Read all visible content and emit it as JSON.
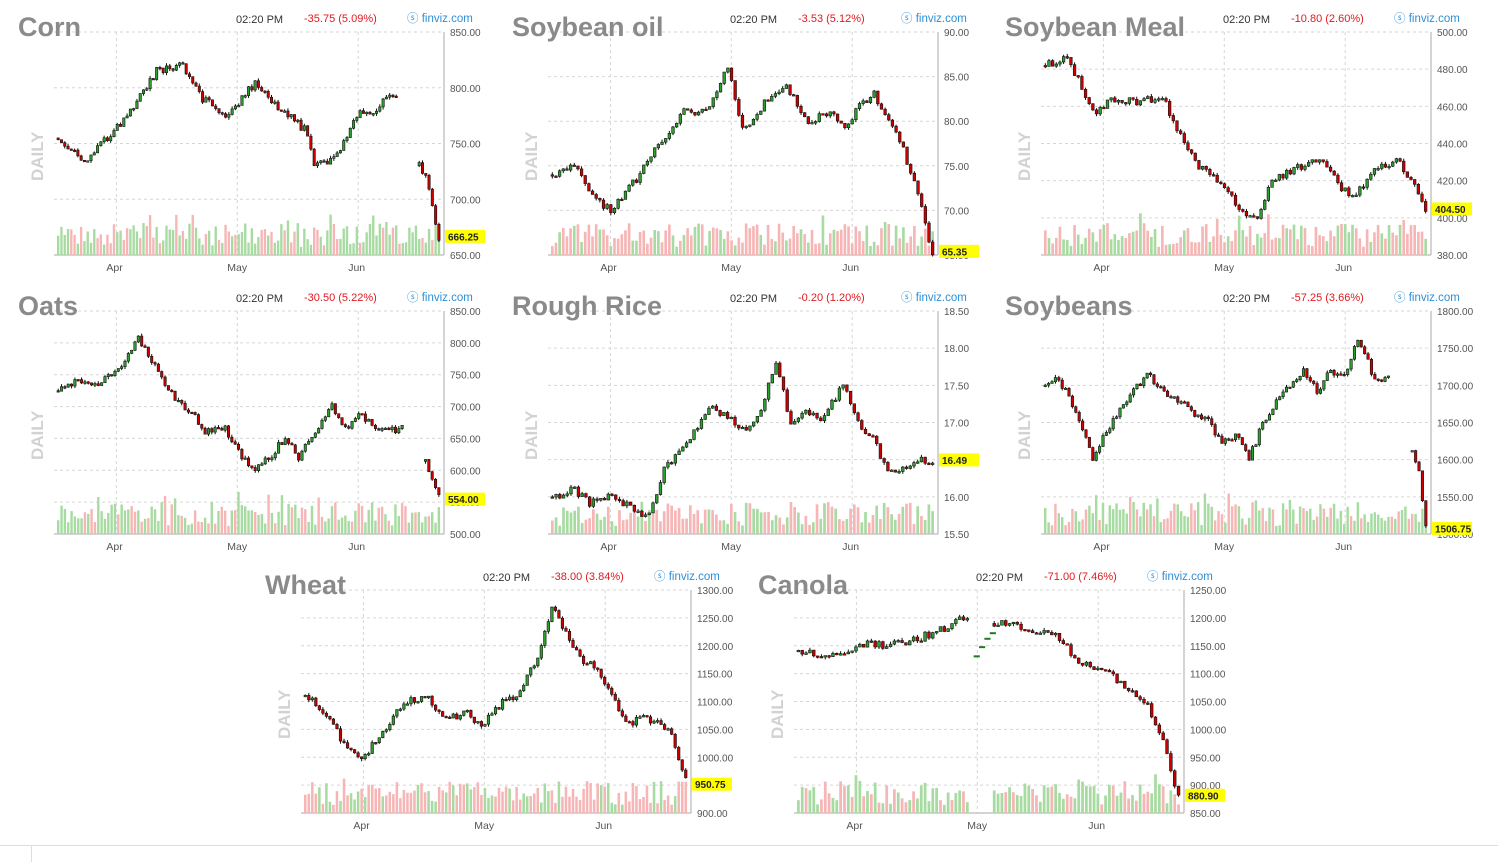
{
  "chart_data": [
    {
      "type": "candlestick",
      "title": "Corn",
      "time": "02:20 PM",
      "change": "-35.75 (5.09%)",
      "brand": "finviz.com",
      "period_label": "DAILY",
      "yticks": [
        "850.00",
        "800.00",
        "750.00",
        "700.00",
        "650.00"
      ],
      "ylim": [
        650,
        850
      ],
      "months": [
        "Apr",
        "May",
        "Jun"
      ],
      "last": "666.25",
      "anchors": [
        [
          0,
          755
        ],
        [
          8,
          735
        ],
        [
          20,
          770
        ],
        [
          30,
          815
        ],
        [
          38,
          820
        ],
        [
          44,
          790
        ],
        [
          52,
          775
        ],
        [
          60,
          805
        ],
        [
          68,
          780
        ],
        [
          76,
          760
        ],
        [
          78,
          730
        ],
        [
          84,
          735
        ],
        [
          92,
          780
        ],
        [
          96,
          775
        ],
        [
          100,
          795
        ],
        [
          103,
          790
        ]
      ],
      "gap_after": 103,
      "gap_anchors": [
        [
          0,
          730
        ],
        [
          3,
          712
        ],
        [
          6,
          665
        ]
      ],
      "vol_up_ratio": 0.6
    },
    {
      "type": "candlestick",
      "title": "Soybean oil",
      "time": "02:20 PM",
      "change": "-3.53 (5.12%)",
      "brand": "finviz.com",
      "period_label": "DAILY",
      "yticks": [
        "90.00",
        "85.00",
        "80.00",
        "75.00",
        "70.00",
        "65.00"
      ],
      "ylim": [
        65,
        90
      ],
      "months": [
        "Apr",
        "May",
        "Jun"
      ],
      "last": "65.35",
      "anchors": [
        [
          0,
          74
        ],
        [
          6,
          75
        ],
        [
          12,
          71
        ],
        [
          16,
          70
        ],
        [
          24,
          74
        ],
        [
          30,
          78
        ],
        [
          36,
          81
        ],
        [
          42,
          81
        ],
        [
          48,
          86
        ],
        [
          52,
          79
        ],
        [
          58,
          82
        ],
        [
          64,
          84
        ],
        [
          70,
          80
        ],
        [
          76,
          81
        ],
        [
          80,
          79
        ],
        [
          84,
          82
        ],
        [
          88,
          83
        ],
        [
          92,
          80
        ],
        [
          96,
          77
        ],
        [
          98,
          74
        ],
        [
          100,
          72
        ],
        [
          104,
          65
        ]
      ],
      "vol_up_ratio": 0.4
    },
    {
      "type": "candlestick",
      "title": "Soybean Meal",
      "time": "02:20 PM",
      "change": "-10.80 (2.60%)",
      "brand": "finviz.com",
      "period_label": "DAILY",
      "yticks": [
        "500.00",
        "480.00",
        "460.00",
        "440.00",
        "420.00",
        "400.00",
        "380.00"
      ],
      "ylim": [
        380,
        500
      ],
      "months": [
        "Apr",
        "May",
        "Jun"
      ],
      "last": "404.50",
      "anchors": [
        [
          0,
          482
        ],
        [
          6,
          486
        ],
        [
          10,
          470
        ],
        [
          14,
          456
        ],
        [
          18,
          464
        ],
        [
          26,
          462
        ],
        [
          32,
          466
        ],
        [
          36,
          448
        ],
        [
          42,
          428
        ],
        [
          48,
          418
        ],
        [
          54,
          404
        ],
        [
          58,
          398
        ],
        [
          62,
          420
        ],
        [
          70,
          428
        ],
        [
          76,
          432
        ],
        [
          80,
          418
        ],
        [
          84,
          410
        ],
        [
          90,
          425
        ],
        [
          96,
          432
        ],
        [
          100,
          420
        ],
        [
          104,
          405
        ]
      ],
      "vol_up_ratio": 0.45
    },
    {
      "type": "candlestick",
      "title": "Oats",
      "time": "02:20 PM",
      "change": "-30.50 (5.22%)",
      "brand": "finviz.com",
      "period_label": "DAILY",
      "yticks": [
        "850.00",
        "800.00",
        "750.00",
        "700.00",
        "650.00",
        "600.00",
        "550.00",
        "500.00"
      ],
      "ylim": [
        500,
        850
      ],
      "months": [
        "Apr",
        "May",
        "Jun"
      ],
      "last": "554.00",
      "anchors": [
        [
          0,
          725
        ],
        [
          6,
          740
        ],
        [
          12,
          735
        ],
        [
          18,
          760
        ],
        [
          24,
          805
        ],
        [
          28,
          775
        ],
        [
          34,
          720
        ],
        [
          40,
          690
        ],
        [
          44,
          660
        ],
        [
          50,
          665
        ],
        [
          54,
          630
        ],
        [
          58,
          600
        ],
        [
          64,
          625
        ],
        [
          68,
          650
        ],
        [
          72,
          620
        ],
        [
          78,
          665
        ],
        [
          82,
          700
        ],
        [
          86,
          665
        ],
        [
          90,
          690
        ],
        [
          96,
          665
        ],
        [
          100,
          662
        ],
        [
          103,
          666
        ]
      ],
      "gap_after": 103,
      "gap_anchors": [
        [
          0,
          614
        ],
        [
          2,
          585
        ],
        [
          4,
          556
        ]
      ],
      "vol_up_ratio": 0.6
    },
    {
      "type": "candlestick",
      "title": "Rough Rice",
      "time": "02:20 PM",
      "change": "-0.20 (1.20%)",
      "brand": "finviz.com",
      "period_label": "DAILY",
      "yticks": [
        "18.50",
        "18.00",
        "17.50",
        "17.00",
        "16.50",
        "16.00",
        "15.50"
      ],
      "ylim": [
        15.5,
        18.5
      ],
      "months": [
        "Apr",
        "May",
        "Jun"
      ],
      "last": "16.49",
      "anchors": [
        [
          0,
          16.0
        ],
        [
          6,
          16.1
        ],
        [
          10,
          15.9
        ],
        [
          16,
          16.05
        ],
        [
          22,
          15.8
        ],
        [
          26,
          15.75
        ],
        [
          30,
          16.4
        ],
        [
          36,
          16.7
        ],
        [
          42,
          17.2
        ],
        [
          46,
          17.1
        ],
        [
          52,
          16.9
        ],
        [
          56,
          17.2
        ],
        [
          60,
          17.8
        ],
        [
          64,
          17.0
        ],
        [
          68,
          17.2
        ],
        [
          72,
          17.0
        ],
        [
          78,
          17.5
        ],
        [
          82,
          17.0
        ],
        [
          86,
          16.8
        ],
        [
          90,
          16.3
        ],
        [
          94,
          16.4
        ],
        [
          98,
          16.5
        ],
        [
          102,
          16.45
        ]
      ],
      "vol_up_ratio": 0.45
    },
    {
      "type": "candlestick",
      "title": "Soybeans",
      "time": "02:20 PM",
      "change": "-57.25 (3.66%)",
      "brand": "finviz.com",
      "period_label": "DAILY",
      "yticks": [
        "1800.00",
        "1750.00",
        "1700.00",
        "1650.00",
        "1600.00",
        "1550.00",
        "1500.00"
      ],
      "ylim": [
        1500,
        1800
      ],
      "months": [
        "Apr",
        "May",
        "Jun"
      ],
      "last": "1506.75",
      "anchors": [
        [
          0,
          1700
        ],
        [
          4,
          1710
        ],
        [
          10,
          1655
        ],
        [
          14,
          1600
        ],
        [
          18,
          1640
        ],
        [
          24,
          1680
        ],
        [
          30,
          1715
        ],
        [
          36,
          1690
        ],
        [
          42,
          1670
        ],
        [
          48,
          1650
        ],
        [
          52,
          1620
        ],
        [
          56,
          1635
        ],
        [
          60,
          1600
        ],
        [
          64,
          1650
        ],
        [
          70,
          1690
        ],
        [
          76,
          1720
        ],
        [
          80,
          1690
        ],
        [
          84,
          1720
        ],
        [
          88,
          1710
        ],
        [
          92,
          1760
        ],
        [
          96,
          1720
        ],
        [
          98,
          1705
        ],
        [
          101,
          1712
        ]
      ],
      "gap_after": 101,
      "gap_anchors": [
        [
          0,
          1612
        ],
        [
          2,
          1580
        ],
        [
          4,
          1506
        ]
      ],
      "vol_up_ratio": 0.6
    },
    {
      "type": "candlestick",
      "title": "Wheat",
      "time": "02:20 PM",
      "change": "-38.00 (3.84%)",
      "brand": "finviz.com",
      "period_label": "DAILY",
      "yticks": [
        "1300.00",
        "1250.00",
        "1200.00",
        "1150.00",
        "1100.00",
        "1050.00",
        "1000.00",
        "950.00",
        "900.00"
      ],
      "ylim": [
        900,
        1300
      ],
      "months": [
        "Apr",
        "May",
        "Jun"
      ],
      "last": "950.75",
      "anchors": [
        [
          0,
          1110
        ],
        [
          6,
          1080
        ],
        [
          12,
          1010
        ],
        [
          16,
          1000
        ],
        [
          22,
          1040
        ],
        [
          28,
          1100
        ],
        [
          34,
          1110
        ],
        [
          40,
          1070
        ],
        [
          46,
          1080
        ],
        [
          50,
          1055
        ],
        [
          56,
          1100
        ],
        [
          60,
          1110
        ],
        [
          66,
          1180
        ],
        [
          70,
          1270
        ],
        [
          74,
          1220
        ],
        [
          78,
          1180
        ],
        [
          84,
          1150
        ],
        [
          88,
          1100
        ],
        [
          92,
          1060
        ],
        [
          96,
          1070
        ],
        [
          100,
          1060
        ],
        [
          104,
          1040
        ],
        [
          108,
          960
        ]
      ],
      "vol_up_ratio": 0.35
    },
    {
      "type": "candlestick",
      "title": "Canola",
      "time": "02:20 PM",
      "change": "-71.00 (7.46%)",
      "brand": "finviz.com",
      "period_label": "DAILY",
      "yticks": [
        "1250.00",
        "1200.00",
        "1150.00",
        "1100.00",
        "1050.00",
        "1000.00",
        "950.00",
        "900.00",
        "850.00"
      ],
      "ylim": [
        850,
        1250
      ],
      "months": [
        "Apr",
        "May",
        "Jun"
      ],
      "last": "880.90",
      "anchors": [
        [
          0,
          1140
        ],
        [
          6,
          1135
        ],
        [
          12,
          1140
        ],
        [
          16,
          1155
        ],
        [
          22,
          1150
        ],
        [
          28,
          1155
        ],
        [
          32,
          1165
        ],
        [
          38,
          1180
        ],
        [
          42,
          1195
        ],
        [
          44,
          1195
        ]
      ],
      "gap_after": 44,
      "gap_dashes": [
        [
          1130,
          1132
        ],
        [
          1145,
          1150
        ],
        [
          1160,
          1165
        ],
        [
          1170,
          1175
        ]
      ],
      "gap_anchors": [
        [
          0,
          1190
        ],
        [
          4,
          1190
        ],
        [
          10,
          1180
        ],
        [
          16,
          1170
        ],
        [
          22,
          1120
        ],
        [
          28,
          1110
        ],
        [
          34,
          1080
        ],
        [
          40,
          1040
        ],
        [
          44,
          980
        ],
        [
          48,
          880
        ]
      ],
      "vol_up_ratio": 0.55,
      "vol_gap": true
    }
  ]
}
